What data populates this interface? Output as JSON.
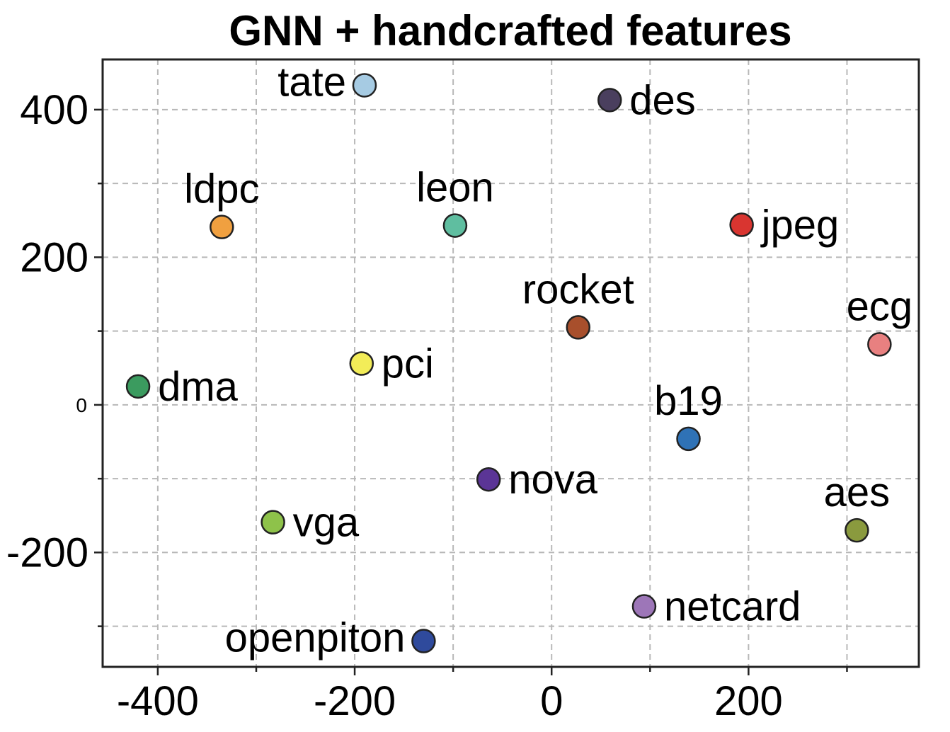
{
  "chart_data": {
    "type": "scatter",
    "title": "GNN + handcrafted features",
    "xlabel": "",
    "ylabel": "",
    "xlim": [
      -456,
      373
    ],
    "ylim": [
      -355,
      468
    ],
    "x_major_ticks": [
      -400,
      -200,
      0,
      200
    ],
    "x_tick_labels": [
      "-400",
      "-200",
      "0",
      "200"
    ],
    "x_minor_ticks": [
      -300,
      -100,
      100,
      300
    ],
    "y_major_ticks": [
      -200,
      0,
      200,
      400
    ],
    "y_tick_labels": [
      "-200",
      "0",
      "200",
      "400"
    ],
    "y_minor_ticks": [
      -300,
      -100,
      100,
      300
    ],
    "grid": true,
    "points": [
      {
        "label": "tate",
        "x": -190,
        "y": 433,
        "color": "#a6cbe3",
        "label_pos": "left"
      },
      {
        "label": "des",
        "x": 59,
        "y": 413,
        "color": "#4a3f5e",
        "label_pos": "right"
      },
      {
        "label": "ldpc",
        "x": -335,
        "y": 241,
        "color": "#f0a040",
        "label_pos": "above"
      },
      {
        "label": "leon",
        "x": -98,
        "y": 243,
        "color": "#5fbea0",
        "label_pos": "above"
      },
      {
        "label": "jpeg",
        "x": 193,
        "y": 244,
        "color": "#d93530",
        "label_pos": "right"
      },
      {
        "label": "rocket",
        "x": 27,
        "y": 105,
        "color": "#a84f2c",
        "label_pos": "above"
      },
      {
        "label": "ecg",
        "x": 333,
        "y": 82,
        "color": "#e88080",
        "label_pos": "above"
      },
      {
        "label": "pci",
        "x": -193,
        "y": 56,
        "color": "#f2ec58",
        "label_pos": "right"
      },
      {
        "label": "dma",
        "x": -420,
        "y": 25,
        "color": "#3b9b5f",
        "label_pos": "right"
      },
      {
        "label": "b19",
        "x": 139,
        "y": -46,
        "color": "#2f72b6",
        "label_pos": "above"
      },
      {
        "label": "nova",
        "x": -64,
        "y": -101,
        "color": "#5b3596",
        "label_pos": "right"
      },
      {
        "label": "aes",
        "x": 310,
        "y": -170,
        "color": "#8a9a3e",
        "label_pos": "above"
      },
      {
        "label": "vga",
        "x": -283,
        "y": -159,
        "color": "#8ec24a",
        "label_pos": "right"
      },
      {
        "label": "netcard",
        "x": 94,
        "y": -273,
        "color": "#9d76b8",
        "label_pos": "right"
      },
      {
        "label": "openpiton",
        "x": -130,
        "y": -320,
        "color": "#2f4a9c",
        "label_pos": "left"
      }
    ]
  }
}
